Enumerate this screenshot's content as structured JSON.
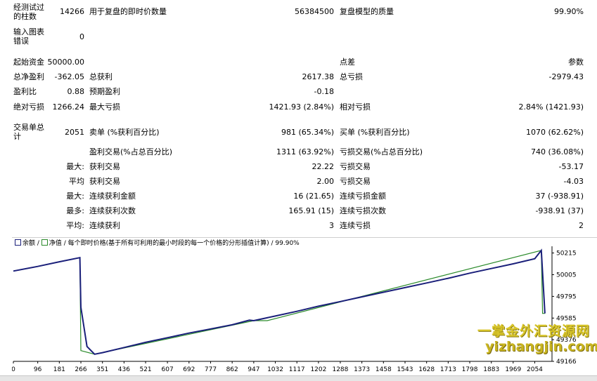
{
  "report": {
    "bars_tested_label": "经测试过的柱数",
    "bars_tested_value": "14266",
    "ticks_label": "用于复盘的即时价数量",
    "ticks_value": "56384500",
    "quality_label": "复盘模型的质量",
    "quality_value": "99.90%",
    "mismatch_label": "输入图表错误",
    "mismatch_value": "0",
    "deposit_label": "起始资金",
    "deposit_value": "50000.00",
    "spread_label": "点差",
    "spread_value": "参数",
    "net_profit_label": "总净盈利",
    "net_profit_value": "-362.05",
    "gross_profit_label": "总获利",
    "gross_profit_value": "2617.38",
    "gross_loss_label": "总亏损",
    "gross_loss_value": "-2979.43",
    "profit_factor_label": "盈利比",
    "profit_factor_value": "0.88",
    "expected_payoff_label": "预期盈利",
    "expected_payoff_value": "-0.18",
    "abs_drawdown_label": "绝对亏损",
    "abs_drawdown_value": "1266.24",
    "max_drawdown_label": "最大亏损",
    "max_drawdown_value": "1421.93 (2.84%)",
    "rel_drawdown_label": "相对亏损",
    "rel_drawdown_value": "2.84% (1421.93)",
    "total_trades_label": "交易单总计",
    "total_trades_value": "2051",
    "short_label": "卖单 (%获利百分比)",
    "short_value": "981 (65.34%)",
    "long_label": "买单 (%获利百分比)",
    "long_value": "1070 (62.62%)",
    "profit_trades_label": "盈利交易(%占总百分比)",
    "profit_trades_value": "1311 (63.92%)",
    "loss_trades_label": "亏损交易(%占总百分比)",
    "loss_trades_value": "740 (36.08%)",
    "largest_prefix": "最大:",
    "largest_profit_label": "获利交易",
    "largest_profit_value": "22.22",
    "largest_loss_label": "亏损交易",
    "largest_loss_value": "-53.17",
    "average_prefix": "平均",
    "average_profit_label": "获利交易",
    "average_profit_value": "2.00",
    "average_loss_label": "亏损交易",
    "average_loss_value": "-4.03",
    "max_consec_prefix": "最大:",
    "max_consec_wins_label": "连续获利金额",
    "max_consec_wins_value": "16 (21.65)",
    "max_consec_losses_label": "连续亏损金额",
    "max_consec_losses_value": "37 (-938.91)",
    "maximal_prefix": "最多:",
    "maximal_wins_label": "连续获利次数",
    "maximal_wins_value": "165.91 (15)",
    "maximal_losses_label": "连续亏损次数",
    "maximal_losses_value": "-938.91 (37)",
    "avg_consec_prefix": "平均:",
    "avg_consec_wins_label": "连续获利",
    "avg_consec_wins_value": "3",
    "avg_consec_losses_label": "连续亏损",
    "avg_consec_losses_value": "2"
  },
  "chart_data": {
    "type": "line",
    "header": {
      "balance_label": "余额",
      "equity_label": "净值",
      "description": "每个即时价格(基于所有可利用的最小时段的每一个价格的分形插值计算)",
      "quality": "99.90%"
    },
    "x_ticks": [
      0,
      96,
      181,
      266,
      351,
      436,
      521,
      607,
      692,
      777,
      862,
      947,
      1032,
      1117,
      1202,
      1288,
      1373,
      1458,
      1543,
      1628,
      1713,
      1798,
      1883,
      1969,
      2054
    ],
    "y_ticks": [
      50215,
      50005,
      49795,
      49585,
      49376,
      49166
    ],
    "xlim": [
      0,
      2122
    ],
    "ylim": [
      49166,
      50280
    ],
    "series": [
      {
        "name": "余额",
        "color": "#1a1f7a",
        "x": [
          0,
          96,
          181,
          262,
          266,
          290,
          320,
          351,
          436,
          521,
          607,
          692,
          777,
          862,
          930,
          947,
          1032,
          1117,
          1202,
          1288,
          1373,
          1458,
          1543,
          1628,
          1713,
          1798,
          1883,
          1969,
          2054,
          2080,
          2094
        ],
        "y": [
          50040,
          50085,
          50130,
          50170,
          49690,
          49310,
          49235,
          49250,
          49300,
          49350,
          49395,
          49440,
          49480,
          49520,
          49565,
          49560,
          49605,
          49650,
          49700,
          49745,
          49790,
          49835,
          49880,
          49925,
          49970,
          50020,
          50065,
          50110,
          50160,
          50240,
          49630
        ]
      },
      {
        "name": "净值",
        "color": "#2a8a2a",
        "x": [
          262,
          266,
          320,
          947,
          1000,
          2080,
          2085,
          2094
        ],
        "y": [
          50170,
          49270,
          49235,
          49560,
          49560,
          50240,
          49630,
          49630
        ]
      }
    ]
  },
  "watermark": {
    "text_cn": "一掌金外汇资源网",
    "text_url": "yizhangjin.com"
  }
}
